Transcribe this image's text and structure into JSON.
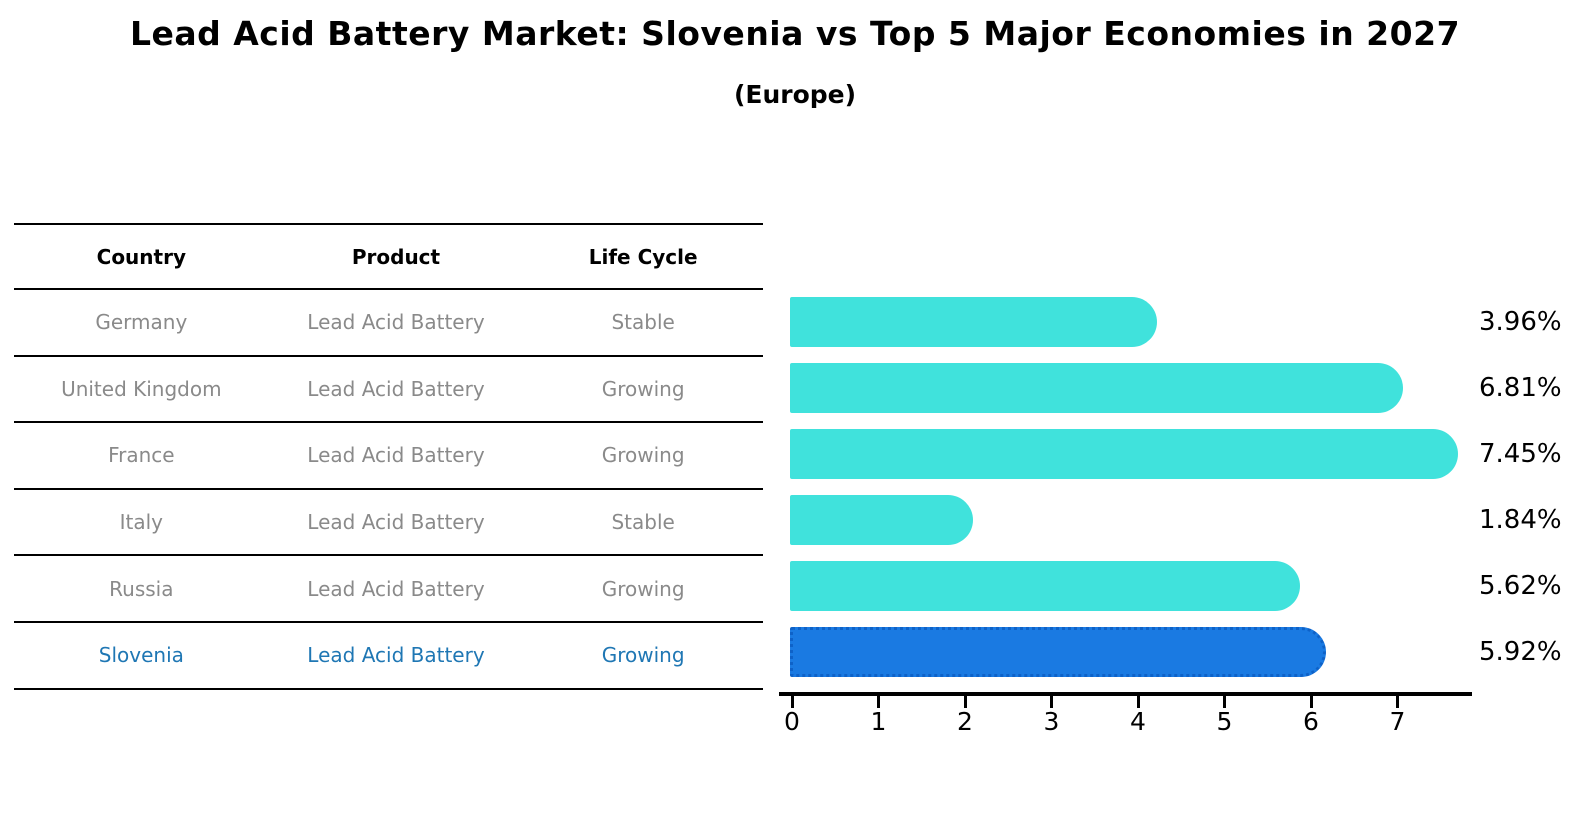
{
  "header": {
    "title": "Lead Acid Battery Market: Slovenia vs Top 5 Major Economies in 2027",
    "subtitle": "(Europe)"
  },
  "table": {
    "columns": [
      "Country",
      "Product",
      "Life Cycle"
    ],
    "rows": [
      {
        "country": "Germany",
        "product": "Lead Acid Battery",
        "life_cycle": "Stable",
        "highlight": false
      },
      {
        "country": "United Kingdom",
        "product": "Lead Acid Battery",
        "life_cycle": "Growing",
        "highlight": false
      },
      {
        "country": "France",
        "product": "Lead Acid Battery",
        "life_cycle": "Growing",
        "highlight": false
      },
      {
        "country": "Italy",
        "product": "Lead Acid Battery",
        "life_cycle": "Stable",
        "highlight": false
      },
      {
        "country": "Russia",
        "product": "Lead Acid Battery",
        "life_cycle": "Growing",
        "highlight": false
      },
      {
        "country": "Slovenia",
        "product": "Lead Acid Battery",
        "life_cycle": "Growing",
        "highlight": true
      }
    ]
  },
  "chart_data": {
    "type": "bar",
    "orientation": "horizontal",
    "title": "Lead Acid Battery Market: Slovenia vs Top 5 Major Economies in 2027 (Europe)",
    "categories": [
      "Germany",
      "United Kingdom",
      "France",
      "Italy",
      "Russia",
      "Slovenia"
    ],
    "values": [
      3.96,
      6.81,
      7.45,
      1.84,
      5.62,
      5.92
    ],
    "value_labels": [
      "3.96%",
      "6.81%",
      "7.45%",
      "1.84%",
      "5.62%",
      "5.92%"
    ],
    "xlabel": "",
    "ylabel": "",
    "xlim": [
      0,
      7.86
    ],
    "xticks": [
      0,
      1,
      2,
      3,
      4,
      5,
      6,
      7
    ],
    "grid": false,
    "legend": null,
    "highlight_index": 5,
    "colors": {
      "bar_default": "#40e2dc",
      "bar_highlight": "#1a7ae2",
      "bar_highlight_border": "#0e62c8",
      "highlight_text": "#1f77b4",
      "row_text": "#8a8a8a",
      "axis": "#000000"
    }
  }
}
